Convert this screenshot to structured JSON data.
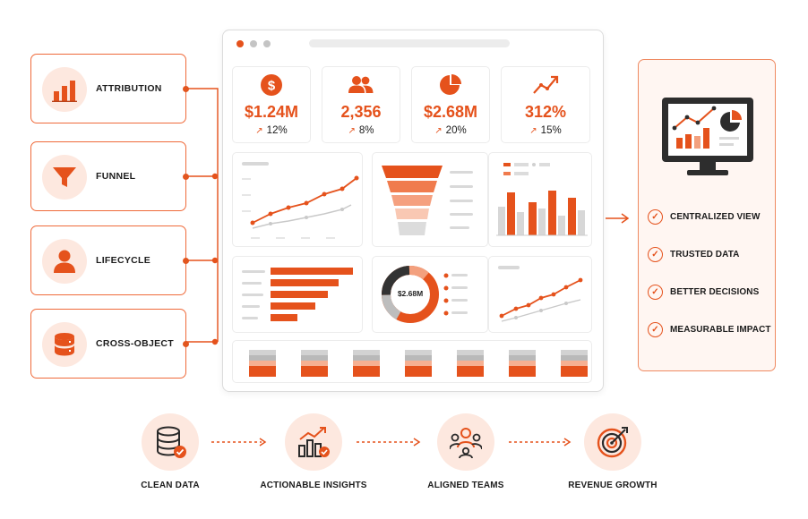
{
  "categories": [
    {
      "label": "ATTRIBUTION",
      "icon": "bar-chart-icon"
    },
    {
      "label": "FUNNEL",
      "icon": "funnel-icon"
    },
    {
      "label": "LIFECYCLE",
      "icon": "person-icon"
    },
    {
      "label": "CROSS-OBJECT",
      "icon": "database-icon"
    }
  ],
  "dashboard": {
    "kpis": [
      {
        "icon": "dollar-icon",
        "value": "$1.24M",
        "change": "12%"
      },
      {
        "icon": "users-icon",
        "value": "2,356",
        "change": "8%"
      },
      {
        "icon": "pie-chart-icon",
        "value": "$2.68M",
        "change": "20%"
      },
      {
        "icon": "trend-line-icon",
        "value": "312%",
        "change": "15%"
      }
    ],
    "donut_center": "$2.68M"
  },
  "benefits": [
    {
      "label": "CENTRALIZED VIEW"
    },
    {
      "label": "TRUSTED DATA"
    },
    {
      "label": "BETTER DECISIONS"
    },
    {
      "label": "MEASURABLE IMPACT"
    }
  ],
  "flow": [
    {
      "label": "CLEAN DATA",
      "icon": "database-check-icon"
    },
    {
      "label": "ACTIONABLE INSIGHTS",
      "icon": "growth-chart-icon"
    },
    {
      "label": "ALIGNED TEAMS",
      "icon": "team-icon"
    },
    {
      "label": "REVENUE GROWTH",
      "icon": "target-icon"
    }
  ],
  "colors": {
    "accent": "#e5521c",
    "accent_light": "#fde8df",
    "border": "#ef6a3a"
  }
}
